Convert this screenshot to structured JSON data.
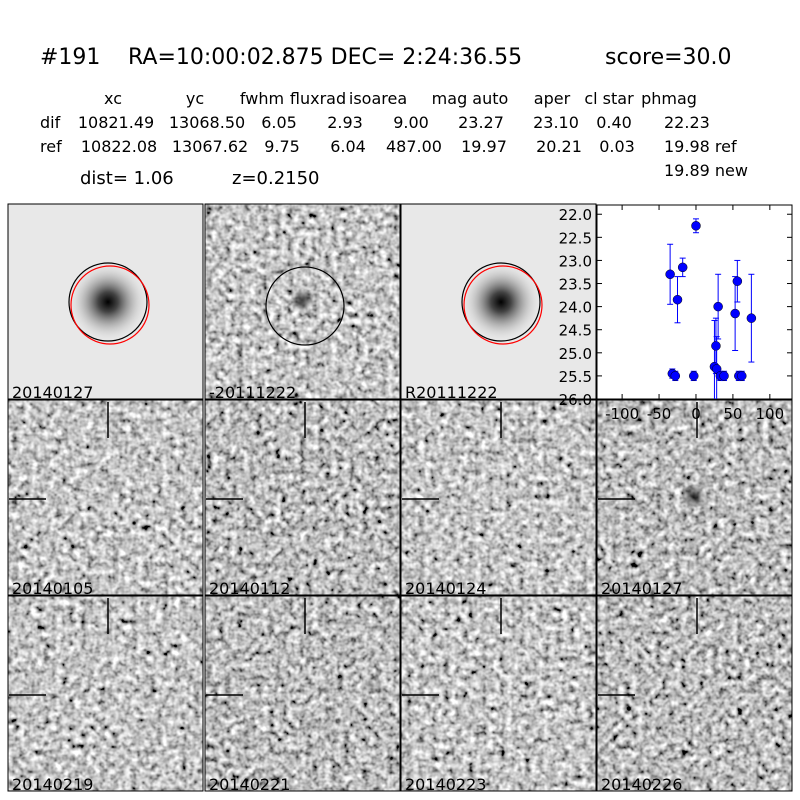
{
  "header": {
    "id": "#191",
    "coords": "RA=10:00:02.875 DEC= 2:24:36.55",
    "score": "score=30.0"
  },
  "table": {
    "columns": [
      "xc",
      "yc",
      "fwhm",
      "fluxrad",
      "isoarea",
      "mag auto",
      "aper",
      "cl star",
      "phmag"
    ],
    "rows": [
      [
        "dif",
        "10821.49",
        "13068.50",
        "6.05",
        "2.93",
        "9.00",
        "23.27",
        "23.10",
        "0.40",
        "22.23"
      ],
      [
        "ref",
        "10822.08",
        "13067.62",
        "9.75",
        "6.04",
        "487.00",
        "19.97",
        "20.21",
        "0.03",
        "19.98 ref"
      ]
    ],
    "extra": "19.89 new",
    "dist": "dist=  1.06",
    "z": "z=0.2150"
  },
  "stamps": [
    {
      "label": "20140127"
    },
    {
      "label": "-20111222"
    },
    {
      "label": "R20111222"
    },
    {
      "label": "20140105"
    },
    {
      "label": "20140112"
    },
    {
      "label": "20140124"
    },
    {
      "label": "20140127",
      "label_color": "#ff0000"
    },
    {
      "label": "20140219"
    },
    {
      "label": "20140221"
    },
    {
      "label": "20140223"
    },
    {
      "label": "20140226"
    }
  ],
  "chart_data": {
    "type": "scatter",
    "color": "#0000ff",
    "invert_y": true,
    "x": [
      -35,
      -32,
      -28,
      -25,
      -18,
      -3,
      0,
      25,
      27,
      28,
      30,
      33,
      38,
      53,
      56,
      58,
      62,
      75
    ],
    "values": [
      23.3,
      25.45,
      25.5,
      23.85,
      23.15,
      25.5,
      22.25,
      25.3,
      24.85,
      25.35,
      24.0,
      25.5,
      25.5,
      24.15,
      23.45,
      25.5,
      25.5,
      24.25
    ],
    "errors": [
      0.65,
      0.1,
      0.1,
      0.5,
      0.2,
      0.1,
      0.15,
      1.0,
      0.6,
      0.7,
      0.7,
      0.1,
      0.1,
      0.8,
      0.45,
      0.1,
      0.1,
      0.95
    ],
    "xlim": [
      -134,
      130
    ],
    "ylim": [
      21.8,
      26.0
    ],
    "xticks": [
      -100,
      -50,
      0,
      50,
      100
    ],
    "yticks": [
      {
        "value": 22,
        "label": "22.0"
      },
      22.5,
      {
        "value": 23,
        "label": "23.0"
      },
      23.5,
      {
        "value": 24,
        "label": "24.0"
      },
      24.5,
      {
        "value": 25,
        "label": "25.0"
      },
      25.5,
      {
        "value": 26,
        "label": "26.0"
      }
    ]
  }
}
